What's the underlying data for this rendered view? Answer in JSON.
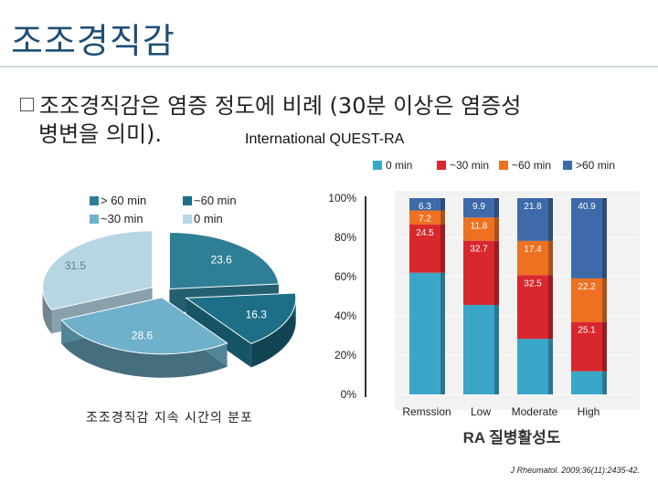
{
  "page": {
    "title": "조조경직감",
    "bullet_line1": "조조경직감은 염증 정도에 비례 (30분 이상은 염증성",
    "bullet_line2": "병변을 의미).",
    "study_label": "International QUEST-RA",
    "pie_caption": "조조경직감 지속 시간의 분포",
    "citation": "J Rheumatol. 2009;36(11):2435-42."
  },
  "colors": {
    "title": "#1f4f74",
    "pie_gt60": "#2e7f96",
    "pie_60": "#1d6f87",
    "pie_30": "#6fb1cb",
    "pie_0": "#b7d6e4",
    "bar_0": "#3aa6c8",
    "bar_30": "#d9272e",
    "bar_60": "#ee7122",
    "bar_gt60": "#3e6aaa"
  },
  "chart_data": [
    {
      "type": "pie",
      "title": "",
      "legend": [
        "> 60 min",
        "~60 min",
        "~30 min",
        "0 min"
      ],
      "categories": [
        "> 60 min",
        "~60 min",
        "~30 min",
        "0 min"
      ],
      "values": [
        23.6,
        16.3,
        28.6,
        31.5
      ]
    },
    {
      "type": "bar",
      "stacked": true,
      "xlabel": "RA 질병활성도",
      "ylabel": "",
      "ylim": [
        0,
        100
      ],
      "yticks": [
        "0%",
        "20%",
        "40%",
        "60%",
        "80%",
        "100%"
      ],
      "categories": [
        "Remssion",
        "Low",
        "Moderate",
        "High"
      ],
      "legend": [
        "0 min",
        "~30 min",
        "~60 min",
        ">60 min"
      ],
      "series": [
        {
          "name": "0 min",
          "values": [
            62.0,
            45.6,
            28.3,
            11.8
          ],
          "labels": [
            "",
            "",
            "",
            ""
          ]
        },
        {
          "name": "~30 min",
          "values": [
            24.5,
            32.7,
            32.5,
            25.1
          ],
          "labels": [
            "24.5",
            "32.7",
            "32.5",
            "25.1"
          ]
        },
        {
          "name": "~60 min",
          "values": [
            7.2,
            11.8,
            17.4,
            22.2
          ],
          "labels": [
            "7.2",
            "11.8",
            "17.4",
            "22.2"
          ]
        },
        {
          "name": ">60 min",
          "values": [
            6.3,
            9.9,
            21.8,
            40.9
          ],
          "labels": [
            "6.3",
            "9.9",
            "21.8",
            "40.9"
          ]
        }
      ]
    }
  ]
}
